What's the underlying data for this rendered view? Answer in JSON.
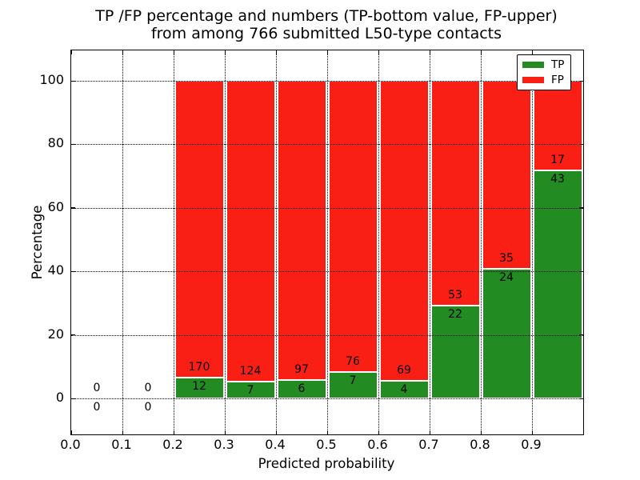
{
  "figure": {
    "title_line1": "TP /FP percentage and numbers (TP-bottom value, FP-upper)",
    "title_line2": "from among 766 submitted L50-type contacts"
  },
  "chart_data": {
    "type": "bar",
    "stacked": true,
    "title": "TP /FP percentage and numbers (TP-bottom value, FP-upper) from among 766 submitted L50-type contacts",
    "xlabel": "Predicted probability",
    "ylabel": "Percentage",
    "xlim": [
      0.0,
      1.0
    ],
    "ylim": [
      -11,
      110
    ],
    "total_contacts": 766,
    "grid": {
      "style": "dotted",
      "color": "#000000",
      "on": true
    },
    "x_ticks": [
      {
        "value": 0.0,
        "label": "0.0"
      },
      {
        "value": 0.1,
        "label": "0.1"
      },
      {
        "value": 0.2,
        "label": "0.2"
      },
      {
        "value": 0.3,
        "label": "0.3"
      },
      {
        "value": 0.4,
        "label": "0.4"
      },
      {
        "value": 0.5,
        "label": "0.5"
      },
      {
        "value": 0.6,
        "label": "0.6"
      },
      {
        "value": 0.7,
        "label": "0.7"
      },
      {
        "value": 0.8,
        "label": "0.8"
      },
      {
        "value": 0.9,
        "label": "0.9"
      }
    ],
    "y_ticks": [
      {
        "value": 0,
        "label": "0"
      },
      {
        "value": 20,
        "label": "20"
      },
      {
        "value": 40,
        "label": "40"
      },
      {
        "value": 60,
        "label": "60"
      },
      {
        "value": 80,
        "label": "80"
      },
      {
        "value": 100,
        "label": "100"
      }
    ],
    "legend": {
      "position": "upper right",
      "entries": [
        {
          "label": "TP",
          "color": "#228b22"
        },
        {
          "label": "FP",
          "color": "#fa1f14"
        }
      ]
    },
    "bins": [
      {
        "x_start": 0.0,
        "x_end": 0.1,
        "tp_count": 0,
        "fp_count": 0,
        "tp_pct": 0,
        "fp_pct": 0
      },
      {
        "x_start": 0.1,
        "x_end": 0.2,
        "tp_count": 0,
        "fp_count": 0,
        "tp_pct": 0,
        "fp_pct": 0
      },
      {
        "x_start": 0.2,
        "x_end": 0.3,
        "tp_count": 12,
        "fp_count": 170,
        "tp_pct": 6.6,
        "fp_pct": 93.4
      },
      {
        "x_start": 0.3,
        "x_end": 0.4,
        "tp_count": 7,
        "fp_count": 124,
        "tp_pct": 5.3,
        "fp_pct": 94.7
      },
      {
        "x_start": 0.4,
        "x_end": 0.5,
        "tp_count": 6,
        "fp_count": 97,
        "tp_pct": 5.8,
        "fp_pct": 94.2
      },
      {
        "x_start": 0.5,
        "x_end": 0.6,
        "tp_count": 7,
        "fp_count": 76,
        "tp_pct": 8.4,
        "fp_pct": 91.6
      },
      {
        "x_start": 0.6,
        "x_end": 0.7,
        "tp_count": 4,
        "fp_count": 69,
        "tp_pct": 5.5,
        "fp_pct": 94.5
      },
      {
        "x_start": 0.7,
        "x_end": 0.8,
        "tp_count": 22,
        "fp_count": 53,
        "tp_pct": 29.3,
        "fp_pct": 70.7
      },
      {
        "x_start": 0.8,
        "x_end": 0.9,
        "tp_count": 24,
        "fp_count": 35,
        "tp_pct": 40.7,
        "fp_pct": 59.3
      },
      {
        "x_start": 0.9,
        "x_end": 1.0,
        "tp_count": 43,
        "fp_count": 17,
        "tp_pct": 71.7,
        "fp_pct": 28.3
      }
    ],
    "colors": {
      "tp": "#228b22",
      "fp": "#fa1f14",
      "bar_edge": "#ffffff",
      "grid": "#000000",
      "frame": "#000000",
      "text": "#000000"
    }
  }
}
